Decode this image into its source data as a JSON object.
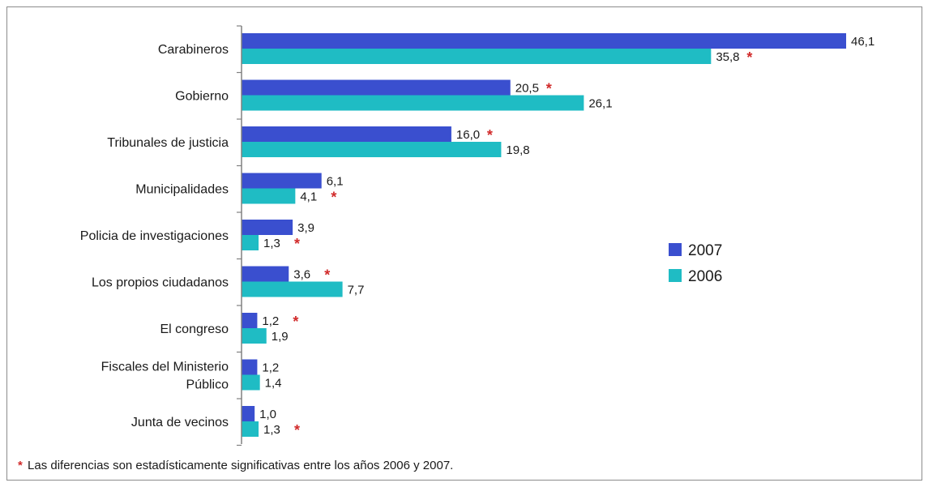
{
  "chart_data": {
    "type": "bar",
    "orientation": "horizontal",
    "categories": [
      "Carabineros",
      "Gobierno",
      "Tribunales de justicia",
      "Municipalidades",
      "Policia de investigaciones",
      "Los propios ciudadanos",
      "El congreso",
      "Fiscales del Ministerio Público",
      "Junta de vecinos"
    ],
    "category_lines": [
      [
        "Carabineros"
      ],
      [
        "Gobierno"
      ],
      [
        "Tribunales de justicia"
      ],
      [
        "Municipalidades"
      ],
      [
        "Policia de investigaciones"
      ],
      [
        "Los propios ciudadanos"
      ],
      [
        "El congreso"
      ],
      [
        "Fiscales del Ministerio",
        "Público"
      ],
      [
        "Junta de vecinos"
      ]
    ],
    "series": [
      {
        "name": "2007",
        "color": "#3a4fcf",
        "values": [
          46.1,
          20.5,
          16.0,
          6.1,
          3.9,
          3.6,
          1.2,
          1.2,
          1.0
        ],
        "labels": [
          "46,1",
          "20,5",
          "16,0",
          "6,1",
          "3,9",
          "3,6",
          "1,2",
          "1,2",
          "1,0"
        ]
      },
      {
        "name": "2006",
        "color": "#1fbcc4",
        "values": [
          35.8,
          26.1,
          19.8,
          4.1,
          1.3,
          7.7,
          1.9,
          1.4,
          1.3
        ],
        "labels": [
          "35,8",
          "26,1",
          "19,8",
          "4,1",
          "1,3",
          "7,7",
          "1,9",
          "1,4",
          "1,3"
        ]
      }
    ],
    "significance_marker": "*",
    "significance": [
      {
        "category": 0,
        "series": 1
      },
      {
        "category": 1,
        "series": 0
      },
      {
        "category": 2,
        "series": 0
      },
      {
        "category": 3,
        "series": 1
      },
      {
        "category": 4,
        "series": 1
      },
      {
        "category": 5,
        "series": 0
      },
      {
        "category": 6,
        "series": 0
      },
      {
        "category": 8,
        "series": 1
      }
    ],
    "xlim": [
      0,
      46.1
    ],
    "grid": false,
    "legend_position": "right"
  },
  "footnote": {
    "marker": "*",
    "text": "Las diferencias son estadísticamente significativas entre los años 2006 y 2007."
  }
}
